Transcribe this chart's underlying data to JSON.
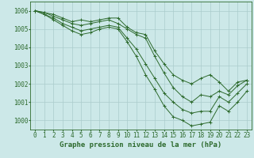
{
  "series": [
    {
      "x": [
        0,
        1,
        2,
        3,
        4,
        5,
        6,
        7,
        8,
        9,
        10,
        11,
        12,
        13,
        14,
        15,
        16,
        17,
        18,
        19,
        20,
        21,
        22,
        23
      ],
      "y": [
        1006.0,
        1005.9,
        1005.8,
        1005.6,
        1005.4,
        1005.5,
        1005.4,
        1005.5,
        1005.6,
        1005.6,
        1005.1,
        1004.8,
        1004.7,
        1003.8,
        1003.1,
        1002.5,
        1002.2,
        1002.0,
        1002.3,
        1002.5,
        1002.1,
        1001.6,
        1002.1,
        1002.2
      ]
    },
    {
      "x": [
        0,
        1,
        2,
        3,
        4,
        5,
        6,
        7,
        8,
        9,
        10,
        11,
        12,
        13,
        14,
        15,
        16,
        17,
        18,
        19,
        20,
        21,
        22,
        23
      ],
      "y": [
        1006.0,
        1005.9,
        1005.7,
        1005.5,
        1005.3,
        1005.2,
        1005.3,
        1005.4,
        1005.5,
        1005.3,
        1005.0,
        1004.7,
        1004.5,
        1003.5,
        1002.6,
        1001.8,
        1001.3,
        1001.0,
        1001.4,
        1001.3,
        1001.6,
        1001.4,
        1001.9,
        1002.2
      ]
    },
    {
      "x": [
        0,
        1,
        2,
        3,
        4,
        5,
        6,
        7,
        8,
        9,
        10,
        11,
        12,
        13,
        14,
        15,
        16,
        17,
        18,
        19,
        20,
        21,
        22,
        23
      ],
      "y": [
        1006.0,
        1005.8,
        1005.6,
        1005.3,
        1005.1,
        1004.9,
        1005.0,
        1005.1,
        1005.2,
        1005.1,
        1004.5,
        1003.9,
        1003.1,
        1002.3,
        1001.5,
        1001.0,
        1000.6,
        1000.4,
        1000.5,
        1000.5,
        1001.3,
        1001.0,
        1001.5,
        1002.0
      ]
    },
    {
      "x": [
        0,
        1,
        2,
        3,
        4,
        5,
        6,
        7,
        8,
        9,
        10,
        11,
        12,
        13,
        14,
        15,
        16,
        17,
        18,
        19,
        20,
        21,
        22,
        23
      ],
      "y": [
        1006.0,
        1005.8,
        1005.5,
        1005.2,
        1004.9,
        1004.7,
        1004.8,
        1005.0,
        1005.1,
        1005.0,
        1004.3,
        1003.5,
        1002.5,
        1001.7,
        1000.8,
        1000.2,
        1000.0,
        999.7,
        999.8,
        999.9,
        1000.8,
        1000.5,
        1001.0,
        1001.6
      ]
    }
  ],
  "line_color": "#2d6a2d",
  "marker": "+",
  "marker_size": 3,
  "bg_color": "#cce8e8",
  "grid_color": "#aacccc",
  "axis_color": "#2d6a2d",
  "tick_color": "#2d6a2d",
  "xlabel": "Graphe pression niveau de la mer (hPa)",
  "xlabel_fontsize": 6.5,
  "tick_fontsize": 5.5,
  "ytick_vals": [
    1000,
    1001,
    1002,
    1003,
    1004,
    1005,
    1006
  ],
  "ytick_labels": [
    "1000",
    "1001",
    "1002",
    "1003",
    "1004",
    "1005",
    "1006"
  ],
  "xtick_labels": [
    "0",
    "1",
    "2",
    "3",
    "4",
    "5",
    "6",
    "7",
    "8",
    "9",
    "10",
    "11",
    "12",
    "13",
    "14",
    "15",
    "16",
    "17",
    "18",
    "19",
    "20",
    "21",
    "22",
    "23"
  ],
  "ylim": [
    999.5,
    1006.5
  ],
  "xlim": [
    -0.5,
    23.5
  ]
}
